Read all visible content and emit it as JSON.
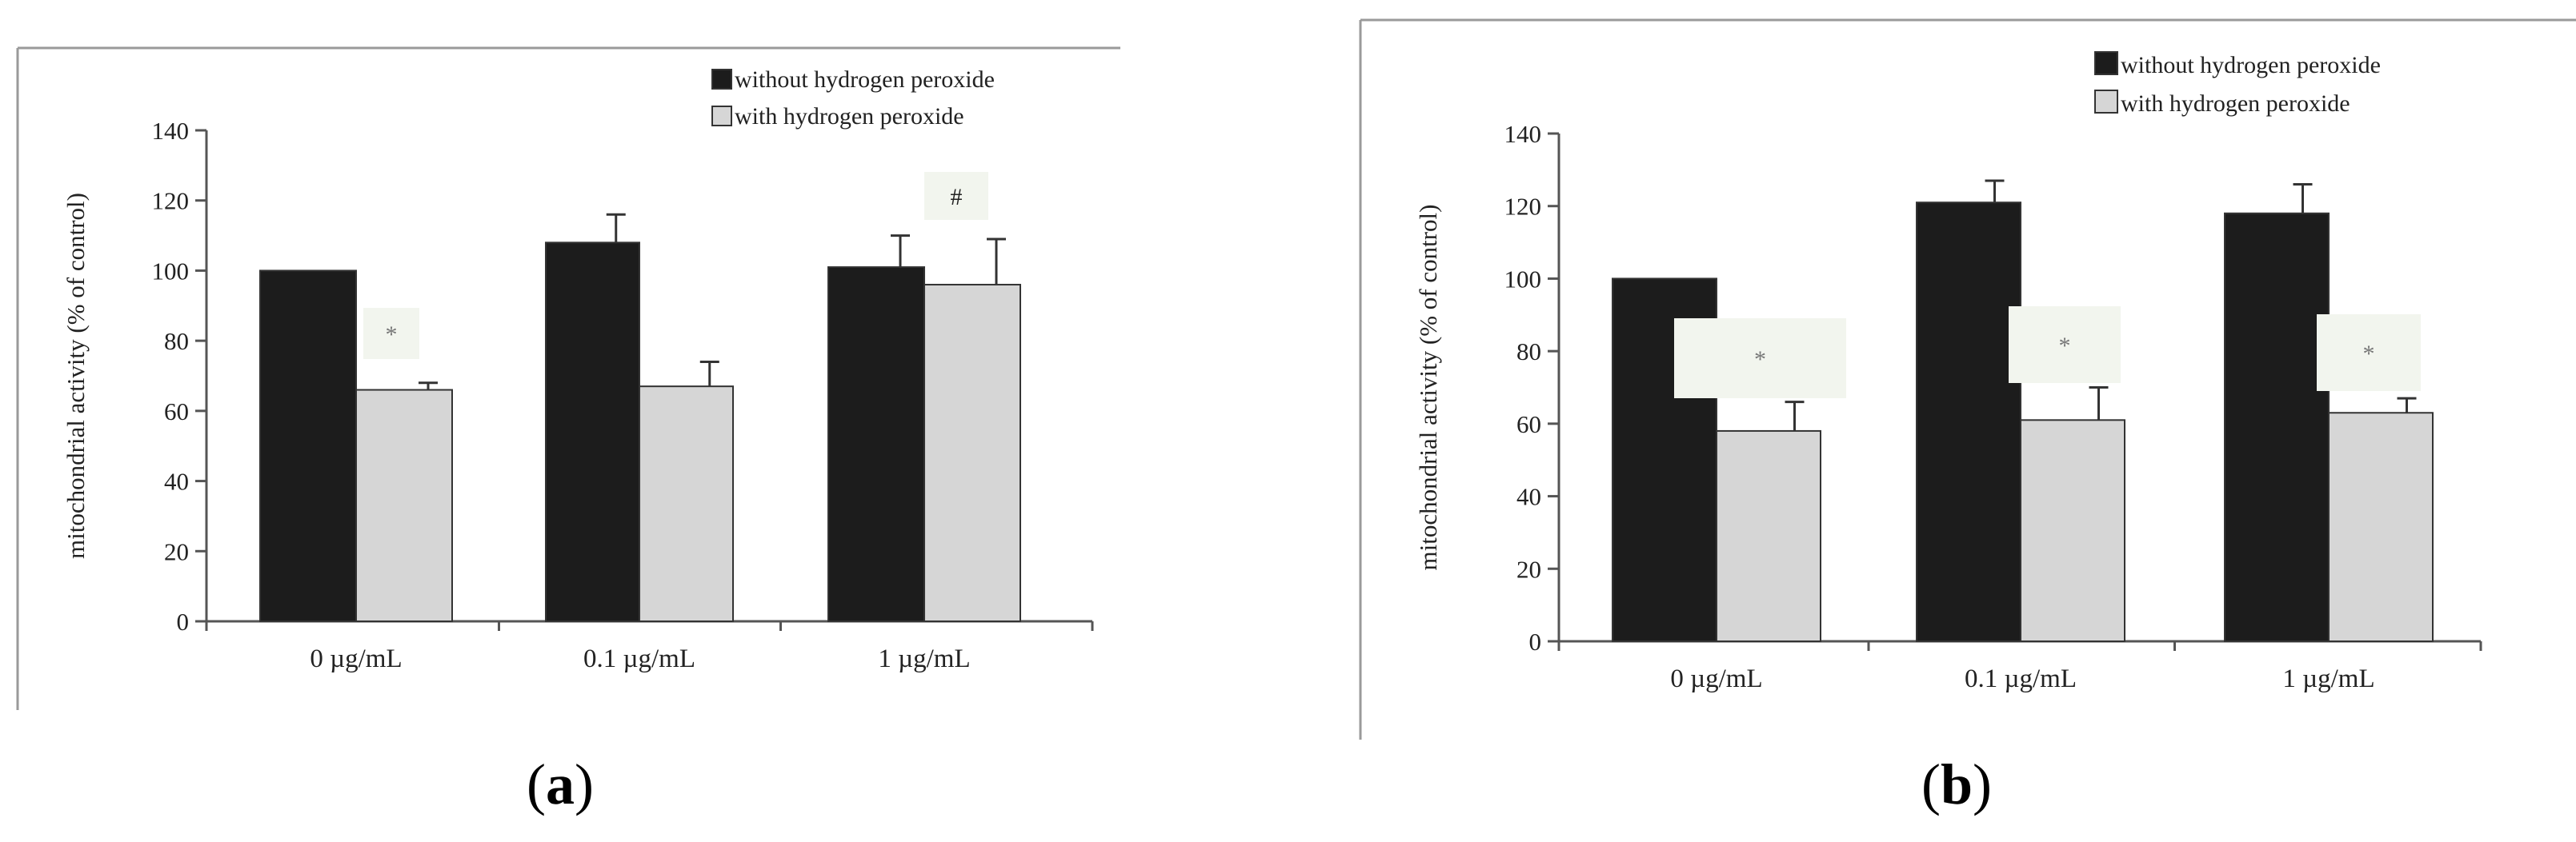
{
  "chart_data": [
    {
      "type": "bar",
      "panel_label": "a",
      "ylabel": "mitochondrial activity (% of control)",
      "xlabel": "",
      "ylim": [
        0,
        140
      ],
      "yticks": [
        "0",
        "20",
        "40",
        "60",
        "80",
        "100",
        "120",
        "140"
      ],
      "categories": [
        "0 µg/mL",
        "0.1 µg/mL",
        "1 µg/mL"
      ],
      "series": [
        {
          "name": "without hydrogen peroxide",
          "color": "#1c1c1c",
          "values": [
            100,
            108,
            101
          ],
          "errors": [
            0,
            8,
            9
          ]
        },
        {
          "name": "with hydrogen peroxide",
          "color": "#d6d6d6",
          "values": [
            66,
            67,
            96
          ],
          "errors": [
            2,
            7,
            13
          ]
        }
      ],
      "annotations": [
        "*",
        "",
        "#"
      ],
      "legend_position": "top-right",
      "grid": false
    },
    {
      "type": "bar",
      "panel_label": "b",
      "ylabel": "mitochondrial activity (% of control)",
      "xlabel": "",
      "ylim": [
        0,
        140
      ],
      "yticks": [
        "0",
        "20",
        "40",
        "60",
        "80",
        "100",
        "120",
        "140"
      ],
      "categories": [
        "0 µg/mL",
        "0.1 µg/mL",
        "1 µg/mL"
      ],
      "series": [
        {
          "name": "without hydrogen peroxide",
          "color": "#1c1c1c",
          "values": [
            100,
            121,
            118
          ],
          "errors": [
            0,
            6,
            8
          ]
        },
        {
          "name": "with hydrogen peroxide",
          "color": "#d6d6d6",
          "values": [
            58,
            61,
            63
          ],
          "errors": [
            8,
            9,
            4
          ]
        }
      ],
      "annotations": [
        "*",
        "*",
        "*"
      ],
      "legend_position": "top-right",
      "grid": false
    }
  ]
}
